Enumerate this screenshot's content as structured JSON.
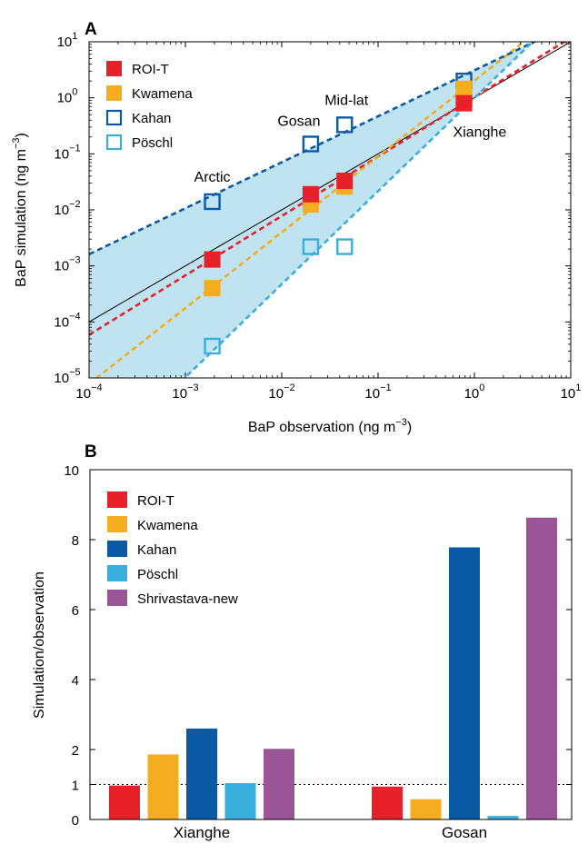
{
  "colors": {
    "roi_t": "#e8202a",
    "kwamena": "#f3ad1e",
    "kahan": "#0a59a5",
    "poschl": "#3aaedb",
    "shrivastava": "#9a5597",
    "band": "#bfe3f0",
    "one_to_one": "#000000"
  },
  "chart_data": [
    {
      "type": "scatter",
      "panel_label": "A",
      "xlabel": "BaP observation (ng m",
      "xlabel_sup": "−3",
      "xlabel_end": ")",
      "ylabel": "BaP simulation (ng m",
      "ylabel_sup": "−3",
      "ylabel_end": ")",
      "scale": "log-log",
      "xlim": [
        0.0001,
        10
      ],
      "ylim": [
        1e-05,
        10
      ],
      "x_ticks": [
        {
          "base": "10",
          "exp": "−4"
        },
        {
          "base": "10",
          "exp": "−3"
        },
        {
          "base": "10",
          "exp": "−2"
        },
        {
          "base": "10",
          "exp": "−1"
        },
        {
          "base": "10",
          "exp": "0"
        },
        {
          "base": "10",
          "exp": "1"
        }
      ],
      "y_ticks": [
        {
          "base": "10",
          "exp": "−5"
        },
        {
          "base": "10",
          "exp": "−4"
        },
        {
          "base": "10",
          "exp": "−3"
        },
        {
          "base": "10",
          "exp": "−2"
        },
        {
          "base": "10",
          "exp": "−1"
        },
        {
          "base": "10",
          "exp": "0"
        },
        {
          "base": "10",
          "exp": "1"
        }
      ],
      "legend_position": "top-left",
      "site_labels": [
        {
          "text": "Arctic"
        },
        {
          "text": "Gosan"
        },
        {
          "text": "Mid-lat"
        },
        {
          "text": "Xianghe"
        }
      ],
      "series": [
        {
          "name": "ROI-T",
          "marker": "filled-square",
          "fit": true,
          "points": [
            [
              0.0019,
              0.0013
            ],
            [
              0.02,
              0.019
            ],
            [
              0.045,
              0.033
            ],
            [
              0.78,
              0.8
            ]
          ]
        },
        {
          "name": "Kwamena",
          "marker": "filled-square",
          "fit": true,
          "points": [
            [
              0.0019,
              0.0004
            ],
            [
              0.02,
              0.0125
            ],
            [
              0.045,
              0.026
            ],
            [
              0.78,
              1.45
            ]
          ]
        },
        {
          "name": "Kahan",
          "marker": "open-square",
          "fit": true,
          "points": [
            [
              0.0019,
              0.014
            ],
            [
              0.02,
              0.15
            ],
            [
              0.045,
              0.33
            ],
            [
              0.78,
              2.0
            ]
          ]
        },
        {
          "name": "Pöschl",
          "marker": "open-square",
          "fit": true,
          "points": [
            [
              0.0019,
              3.7e-05
            ],
            [
              0.02,
              0.0022
            ],
            [
              0.045,
              0.0022
            ],
            [
              0.78,
              0.93
            ]
          ]
        }
      ],
      "one_to_one_line": true,
      "shaded_band_between": [
        "Kahan",
        "Pöschl"
      ]
    },
    {
      "type": "bar",
      "panel_label": "B",
      "ylabel": "Simulation/observation",
      "ylim": [
        0,
        10
      ],
      "y_ticks": [
        "0",
        "1",
        "2",
        "4",
        "6",
        "8",
        "10"
      ],
      "categories": [
        "Xianghe",
        "Gosan"
      ],
      "reference_line": 1,
      "legend_position": "top-left",
      "series": [
        {
          "name": "ROI-T",
          "values": [
            0.97,
            0.94
          ]
        },
        {
          "name": "Kwamena",
          "values": [
            1.86,
            0.58
          ]
        },
        {
          "name": "Kahan",
          "values": [
            2.6,
            7.78
          ]
        },
        {
          "name": "Pöschl",
          "values": [
            1.04,
            0.1
          ]
        },
        {
          "name": "Shrivastava-new",
          "values": [
            2.02,
            8.63
          ]
        }
      ]
    }
  ]
}
